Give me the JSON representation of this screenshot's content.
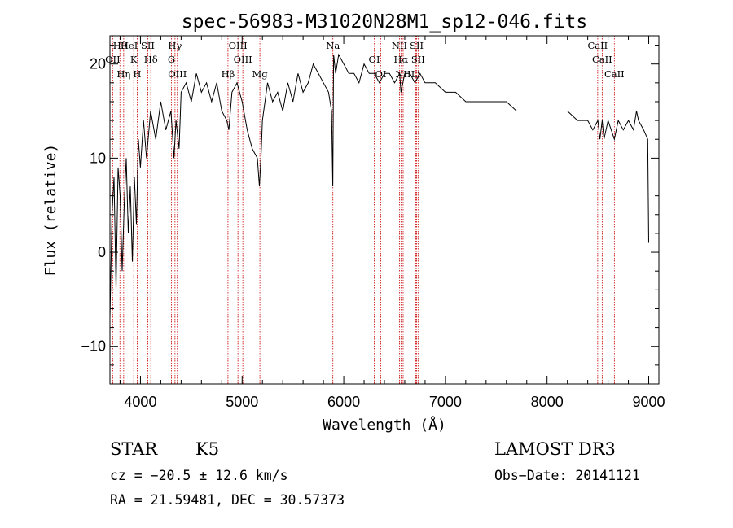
{
  "chart_data": {
    "type": "line",
    "title": "spec-56983-M31020N28M1_sp12-046.fits",
    "xlabel": "Wavelength (Å)",
    "ylabel": "Flux (relative)",
    "xlim": [
      3700,
      9100
    ],
    "ylim": [
      -14,
      23
    ],
    "xticks": [
      4000,
      5000,
      6000,
      7000,
      8000,
      9000
    ],
    "xtick_labels": [
      "4000",
      "5000",
      "6000",
      "7000",
      "8000",
      "9000"
    ],
    "yticks": [
      -10,
      0,
      10,
      20
    ],
    "ytick_labels": [
      "−10",
      "0",
      "10",
      "20"
    ],
    "series": [
      {
        "name": "spectrum",
        "x": [
          3700,
          3720,
          3740,
          3760,
          3780,
          3800,
          3820,
          3840,
          3860,
          3880,
          3900,
          3920,
          3940,
          3960,
          3980,
          4000,
          4030,
          4060,
          4100,
          4150,
          4200,
          4250,
          4300,
          4330,
          4350,
          4380,
          4400,
          4450,
          4500,
          4550,
          4600,
          4650,
          4700,
          4750,
          4800,
          4850,
          4870,
          4900,
          4950,
          5000,
          5050,
          5100,
          5150,
          5170,
          5185,
          5200,
          5250,
          5300,
          5350,
          5400,
          5450,
          5500,
          5550,
          5600,
          5650,
          5700,
          5750,
          5800,
          5850,
          5880,
          5892,
          5900,
          5920,
          5950,
          6000,
          6050,
          6100,
          6150,
          6200,
          6250,
          6300,
          6350,
          6400,
          6450,
          6500,
          6550,
          6563,
          6600,
          6650,
          6700,
          6750,
          6800,
          6900,
          7000,
          7100,
          7200,
          7300,
          7400,
          7500,
          7600,
          7700,
          7800,
          7900,
          8000,
          8100,
          8200,
          8300,
          8400,
          8450,
          8500,
          8520,
          8542,
          8560,
          8600,
          8662,
          8700,
          8750,
          8800,
          8850,
          8880,
          8900,
          8950,
          8990,
          9000
        ],
        "y": [
          -7,
          4,
          8,
          -4,
          9,
          6,
          -2,
          5,
          10,
          2,
          7,
          -1,
          8,
          3,
          12,
          9,
          14,
          10,
          15,
          12,
          16,
          13,
          15,
          10,
          14,
          11,
          17,
          18,
          16,
          19,
          17,
          18,
          16,
          18,
          15,
          14,
          13,
          17,
          18,
          16,
          13,
          11,
          10,
          7,
          10,
          14,
          18,
          16,
          17,
          15,
          18,
          16,
          19,
          17,
          18,
          20,
          19,
          18,
          17,
          15,
          7,
          21,
          19,
          21,
          20,
          19,
          19,
          18,
          20,
          19,
          19,
          18,
          19,
          19,
          18,
          19,
          17,
          19,
          19,
          18,
          19,
          18,
          18,
          17,
          17,
          16,
          16,
          16,
          16,
          16,
          15,
          15,
          15,
          15,
          15,
          15,
          14,
          14,
          13,
          14,
          12,
          14,
          12,
          14,
          12,
          14,
          13,
          14,
          13,
          15,
          14,
          13,
          12,
          1
        ]
      }
    ],
    "lines": [
      {
        "name": "Hθ",
        "x": 3798
      },
      {
        "name": "OII",
        "x": 3727
      },
      {
        "name": "Hη",
        "x": 3835
      },
      {
        "name": "HeI",
        "x": 3889
      },
      {
        "name": "K",
        "x": 3934
      },
      {
        "name": "H",
        "x": 3968
      },
      {
        "name": "SII",
        "x": 4072
      },
      {
        "name": "Hδ",
        "x": 4102
      },
      {
        "name": "OIII",
        "x": 4363
      },
      {
        "name": "Hγ",
        "x": 4340
      },
      {
        "name": "G",
        "x": 4305
      },
      {
        "name": "Hβ",
        "x": 4861
      },
      {
        "name": "OIII",
        "x": 4959
      },
      {
        "name": "OIII",
        "x": 5007
      },
      {
        "name": "Mg",
        "x": 5175
      },
      {
        "name": "Na",
        "x": 5893
      },
      {
        "name": "OI",
        "x": 6300
      },
      {
        "name": "OI",
        "x": 6364
      },
      {
        "name": "NII",
        "x": 6548
      },
      {
        "name": "Hα",
        "x": 6563
      },
      {
        "name": "NII",
        "x": 6584
      },
      {
        "name": "SII",
        "x": 6717
      },
      {
        "name": "SII",
        "x": 6731
      },
      {
        "name": "Li",
        "x": 6708
      },
      {
        "name": "CaII",
        "x": 8498
      },
      {
        "name": "CaII",
        "x": 8542
      },
      {
        "name": "CaII",
        "x": 8662
      }
    ]
  },
  "info": {
    "class": "STAR",
    "subclass": "K5",
    "survey": "LAMOST DR3",
    "cz": "cz = −20.5 ± 12.6 km/s",
    "obs_date": "Obs−Date: 20141121",
    "coords": "RA =  21.59481, DEC =  30.57373"
  },
  "colors": {
    "axis": "#000000",
    "spectrum": "#000000",
    "line_marker": "#cc0000"
  }
}
